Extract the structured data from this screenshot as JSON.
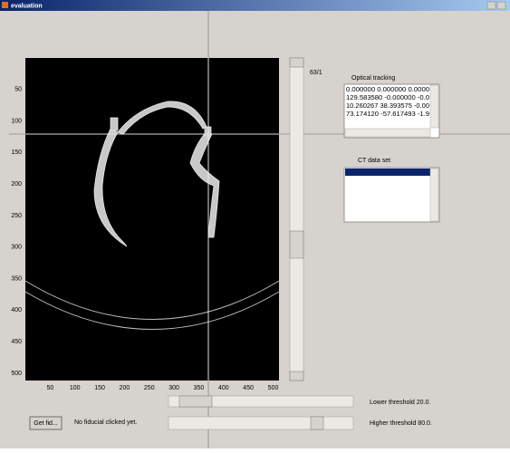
{
  "window": {
    "title": "evaluation"
  },
  "axes": {
    "xticks": [
      50,
      100,
      150,
      200,
      250,
      300,
      350,
      400,
      450,
      500
    ],
    "yticks": [
      50,
      100,
      150,
      200,
      250,
      300,
      350,
      400,
      450,
      500
    ]
  },
  "slice_label": "63/1",
  "optical_tracking": {
    "label": "Optical tracking",
    "rows": [
      "0.000000 0.000000 0.0000",
      "129.583580 -0.000000 -0.0",
      "10.260267 38.393575 -0.00",
      "73.174120 -57.617493 -1.9"
    ]
  },
  "ct_data_set": {
    "label": "CT data set"
  },
  "button": "Get fid...",
  "status": "No fiducial clicked yet.",
  "lower_threshold": "Lower threshold 20.0.",
  "higher_threshold": "Higher threshold 80.0."
}
